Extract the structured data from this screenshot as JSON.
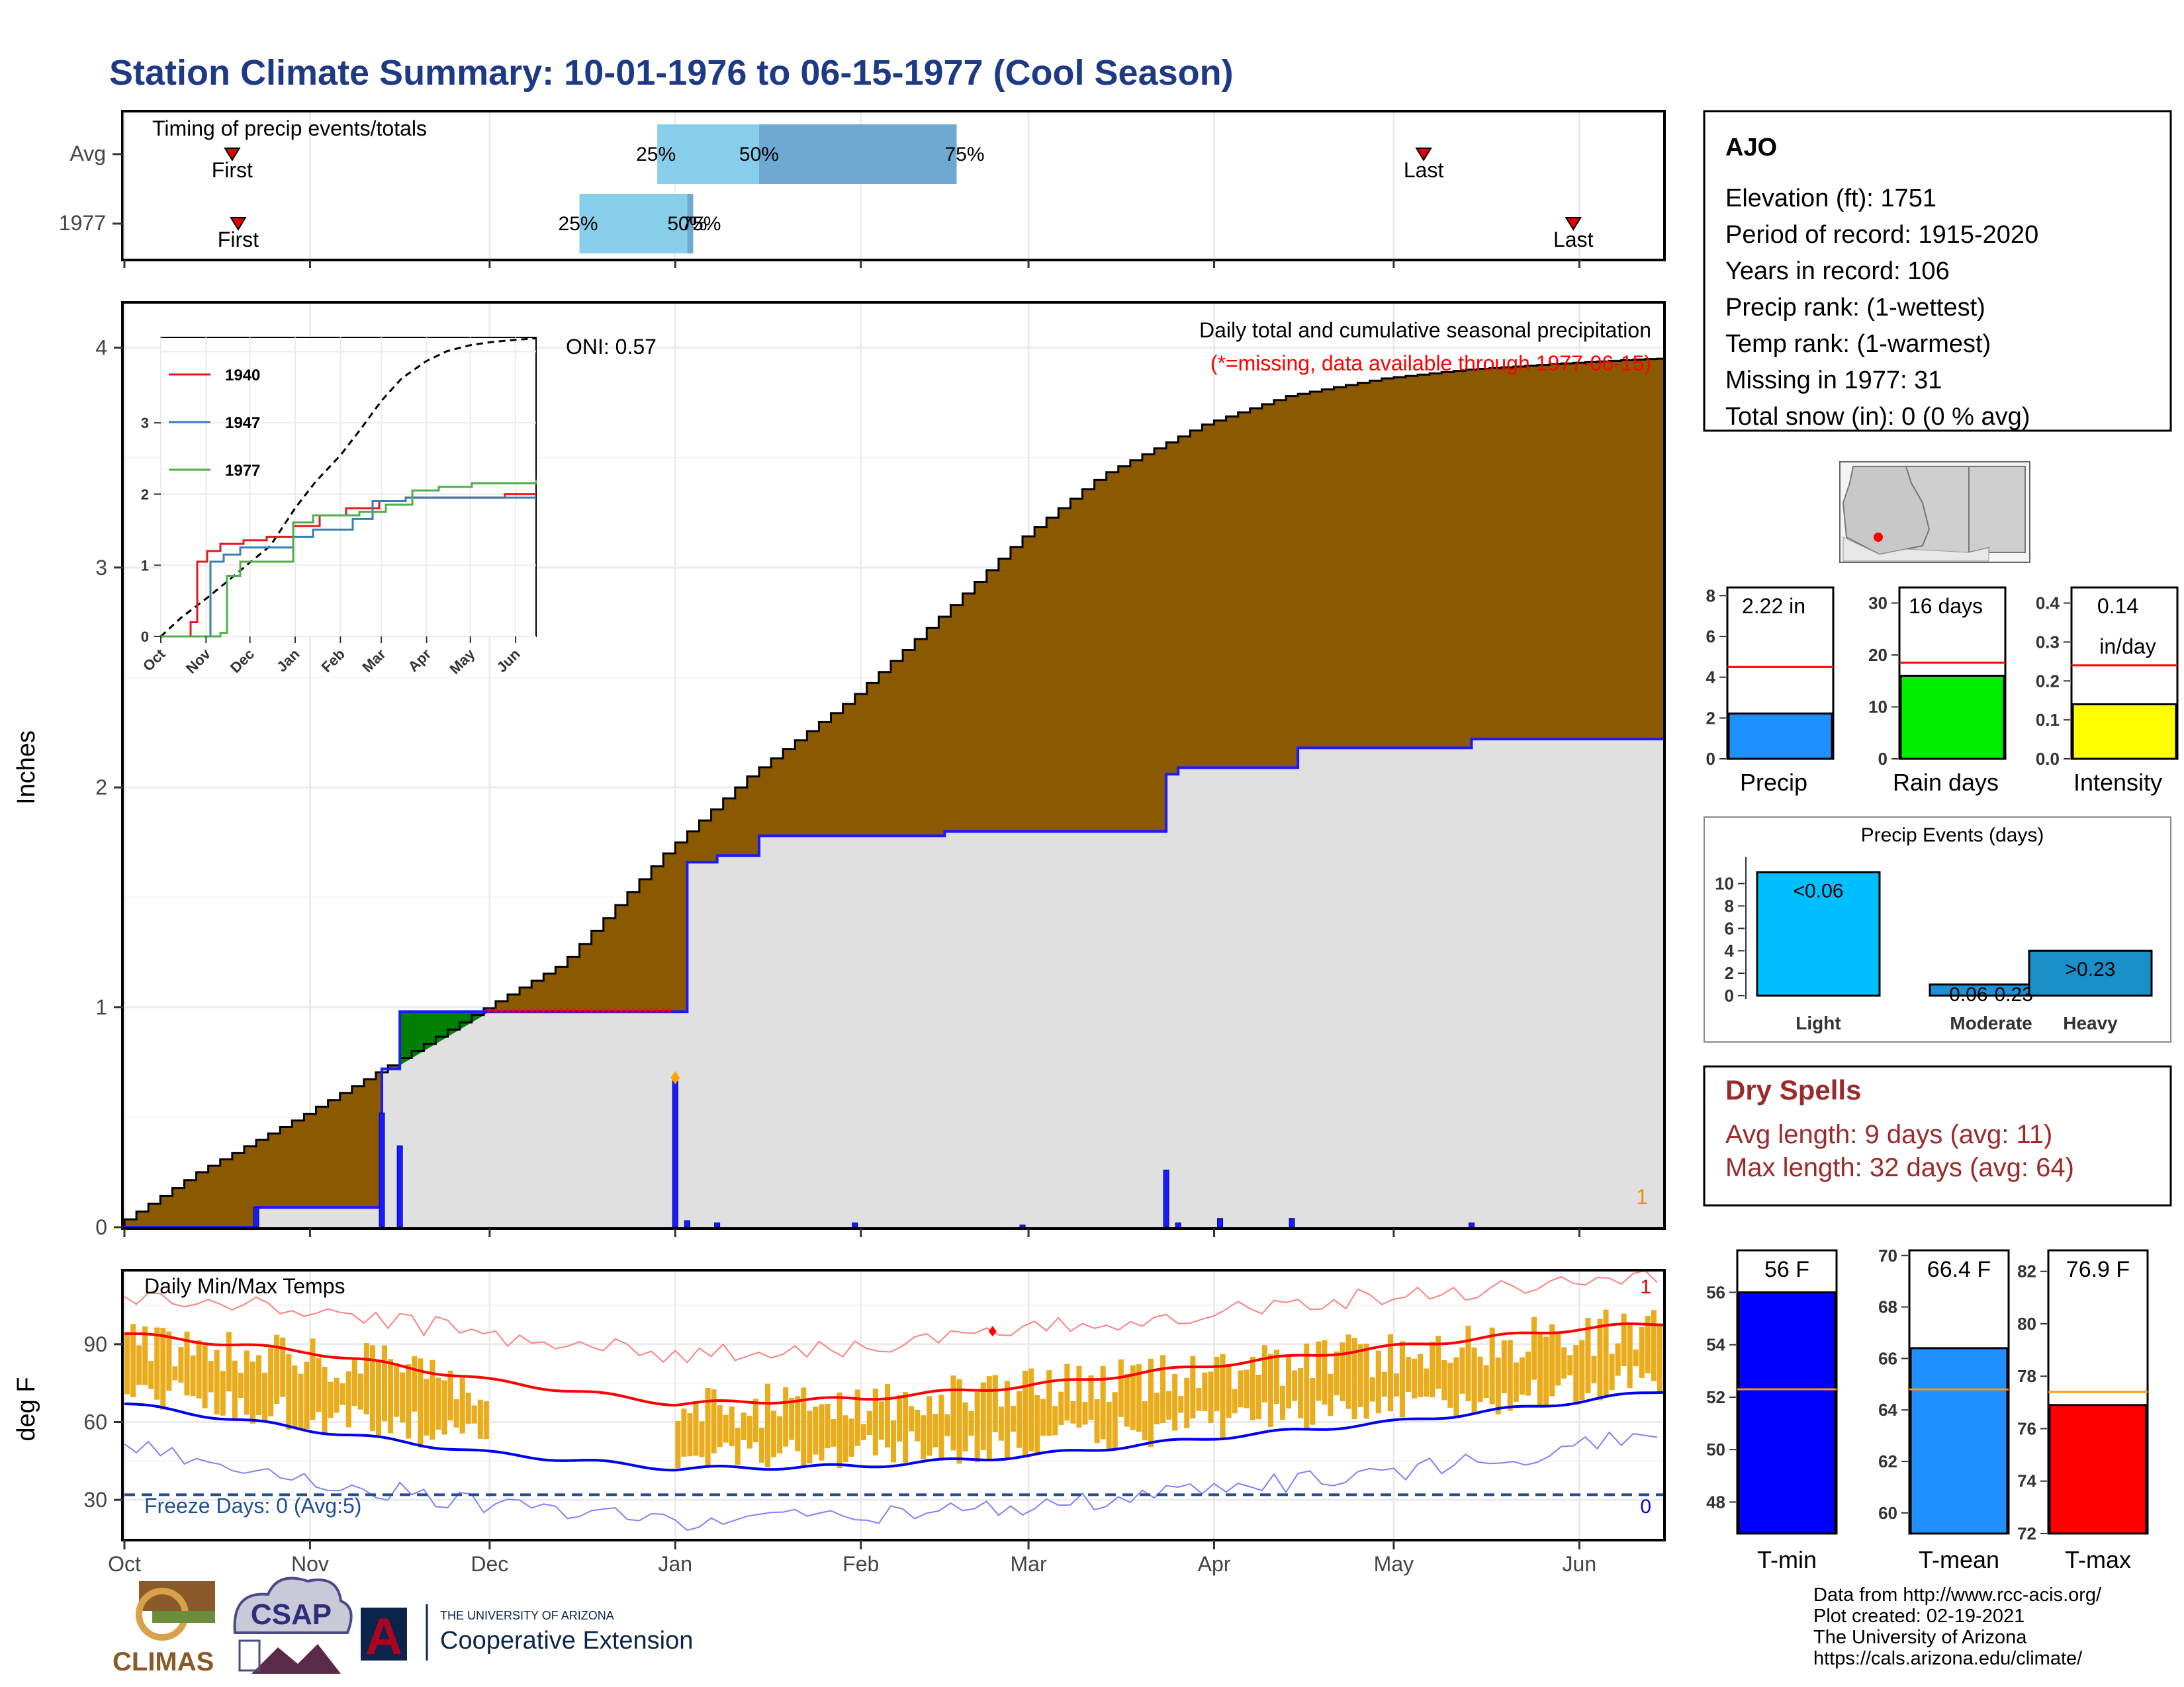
{
  "title": "Station Climate Summary: 10-01-1976 to 06-15-1977 (Cool Season)",
  "colors": {
    "title": "#1f3a85",
    "brown": "#8b5a00",
    "grey_fill": "#e0e0e0",
    "blue_line": "#1a1aff",
    "red_line": "#ff0000",
    "gold": "#e9ac1c",
    "dark_red": "#9c2a2a",
    "light_blue": "#87ceeb",
    "mid_blue": "#6fa8d0"
  },
  "timing": {
    "title": "Timing of precip events/totals",
    "rows": [
      {
        "label": "Avg",
        "first_label": "First",
        "last_label": "Last",
        "first_date": "1976-10-19",
        "last_date": "1977-05-06",
        "p25": "1976-12-29",
        "p50": "1977-01-15",
        "p75": "1977-02-17",
        "p25_label": "25%",
        "p50_label": "50%",
        "p75_label": "75%"
      },
      {
        "label": "1977",
        "first_label": "First",
        "last_label": "Last",
        "first_date": "1976-10-20",
        "last_date": "1977-05-31",
        "p25": "1976-12-16",
        "p50": "1977-01-03",
        "p75": "1977-01-04",
        "p25_label": "25%",
        "p50_label": "50%",
        "p75_label": "75%"
      }
    ]
  },
  "precip": {
    "ylabel": "Inches",
    "oni": "ONI: 0.57",
    "legend_title": "Daily total and cumulative seasonal precipitation",
    "missing_note": "(*=missing, data available through 1977-06-15)",
    "count_label": "1",
    "ylim": [
      0,
      4.2
    ],
    "yticks": [
      "0",
      "1",
      "2",
      "3",
      "4"
    ],
    "xticks": [
      "Oct",
      "Nov",
      "Dec",
      "Jan",
      "Feb",
      "Mar",
      "Apr",
      "May",
      "Jun"
    ]
  },
  "inset": {
    "yticks": [
      "0",
      "1",
      "2",
      "3"
    ],
    "xticks": [
      "Oct",
      "Nov",
      "Dec",
      "Jan",
      "Feb",
      "Mar",
      "Apr",
      "May",
      "Jun"
    ],
    "legend": [
      {
        "name": "1940",
        "color": "#e41a1c"
      },
      {
        "name": "1947",
        "color": "#377eb8"
      },
      {
        "name": "1977",
        "color": "#4daf4a"
      }
    ]
  },
  "temps": {
    "title": "Daily Min/Max Temps",
    "ylabel": "deg F",
    "freeze_label": "Freeze Days: 0 (Avg:5)",
    "top_count": "1",
    "bottom_count": "0",
    "yticks": [
      "30",
      "60",
      "90"
    ],
    "ylim": [
      15,
      118
    ],
    "xticks": [
      "Oct",
      "Nov",
      "Dec",
      "Jan",
      "Feb",
      "Mar",
      "Apr",
      "May",
      "Jun"
    ]
  },
  "station": {
    "name": "AJO",
    "lines": [
      "Elevation (ft): 1751",
      "Period of record: 1915-2020",
      "Years in record: 106",
      "Precip rank:  (1-wettest)",
      "Temp rank:  (1-warmest)",
      "Missing in 1977: 31",
      "Total snow (in): 0 (0 % avg)"
    ]
  },
  "mini_bars": [
    {
      "label": "Precip",
      "value_text": "2.22 in",
      "value": 2.22,
      "avg": 4.5,
      "ymax": 8.4,
      "ticks": [
        "0",
        "2",
        "4",
        "6",
        "8"
      ],
      "tickvals": [
        0,
        2,
        4,
        6,
        8
      ],
      "color": "#1e90ff"
    },
    {
      "label": "Rain days",
      "value_text": "16 days",
      "value": 16,
      "avg": 18.5,
      "ymax": 33,
      "ticks": [
        "0",
        "10",
        "20",
        "30"
      ],
      "tickvals": [
        0,
        10,
        20,
        30
      ],
      "color": "#00ee00"
    },
    {
      "label": "Intensity",
      "value_text": "0.14",
      "value_text2": "in/day",
      "value": 0.14,
      "avg": 0.24,
      "ymax": 0.44,
      "ticks": [
        "0.0",
        "0.1",
        "0.2",
        "0.3",
        "0.4"
      ],
      "tickvals": [
        0,
        0.1,
        0.2,
        0.3,
        0.4
      ],
      "color": "#ffff00"
    }
  ],
  "events": {
    "title": "Precip Events (days)",
    "ticks": [
      "0",
      "2",
      "4",
      "6",
      "8",
      "10"
    ],
    "categories": [
      {
        "name": "Light",
        "value": 11,
        "label": "<0.06",
        "color": "#00bfff"
      },
      {
        "name": "Moderate",
        "value": 1,
        "label": "0.06-0.23",
        "color": "#1f8fd6"
      },
      {
        "name": "Heavy",
        "value": 4,
        "label": ">0.23",
        "color": "#1a8fc8"
      }
    ]
  },
  "dry_spells": {
    "title": "Dry Spells",
    "avg": "Avg length: 9 days (avg: 11)",
    "max": "Max length: 32 days (avg: 64)"
  },
  "temp_bars": [
    {
      "label": "T-min",
      "value_text": "56 F",
      "value": 56,
      "avg": 52.3,
      "ymin": 46.8,
      "ymax": 57.6,
      "ticks": [
        "48",
        "50",
        "52",
        "54",
        "56"
      ],
      "tickvals": [
        48,
        50,
        52,
        54,
        56
      ],
      "color": "#0000ff"
    },
    {
      "label": "T-mean",
      "value_text": "66.4 F",
      "value": 66.4,
      "avg": 64.8,
      "ymin": 59.2,
      "ymax": 70.2,
      "ticks": [
        "60",
        "62",
        "64",
        "66",
        "68",
        "70"
      ],
      "tickvals": [
        60,
        62,
        64,
        66,
        68,
        70
      ],
      "color": "#1e90ff"
    },
    {
      "label": "T-max",
      "value_text": "76.9 F",
      "value": 76.9,
      "avg": 77.4,
      "ymin": 72,
      "ymax": 82.8,
      "ticks": [
        "72",
        "74",
        "76",
        "78",
        "80",
        "82"
      ],
      "tickvals": [
        72,
        74,
        76,
        78,
        80,
        82
      ],
      "color": "#ff0000"
    }
  ],
  "footer": {
    "lines": [
      "Data from http://www.rcc-acis.org/",
      "Plot created: 02-19-2021",
      "The University of Arizona",
      "https://cals.arizona.edu/climate/"
    ],
    "logo_climas": "CLIMAS",
    "logo_csap": "CSAP",
    "logo_ua": "A",
    "ua_small": "THE UNIVERSITY OF ARIZONA",
    "ua_big": "Cooperative Extension"
  },
  "chart_data": [
    {
      "type": "line",
      "title": "Daily total and cumulative seasonal precipitation",
      "ylabel": "Inches",
      "ylim": [
        0,
        4.2
      ],
      "series": [
        {
          "name": "cumulative average",
          "x": [
            "1976-10-01",
            "1976-10-15",
            "1976-11-01",
            "1976-11-15",
            "1976-12-01",
            "1976-12-15",
            "1977-01-01",
            "1977-01-15",
            "1977-02-01",
            "1977-02-15",
            "1977-03-01",
            "1977-03-15",
            "1977-04-01",
            "1977-04-15",
            "1977-05-01",
            "1977-05-15",
            "1977-06-01",
            "1977-06-15"
          ],
          "values": [
            0.0,
            0.25,
            0.5,
            0.72,
            0.98,
            1.2,
            1.7,
            2.05,
            2.4,
            2.75,
            3.12,
            3.42,
            3.65,
            3.78,
            3.86,
            3.9,
            3.93,
            3.95
          ]
        },
        {
          "name": "1977",
          "x": [
            "1976-10-01",
            "1976-10-23",
            "1976-11-13",
            "1976-11-16",
            "1976-12-01",
            "1977-01-01",
            "1977-01-03",
            "1977-01-08",
            "1977-01-15",
            "1977-02-15",
            "1977-03-24",
            "1977-03-26",
            "1977-04-15",
            "1977-05-14",
            "1977-06-15"
          ],
          "values": [
            0.0,
            0.09,
            0.72,
            0.98,
            0.98,
            0.98,
            1.66,
            1.69,
            1.78,
            1.8,
            2.06,
            2.09,
            2.18,
            2.22,
            2.22
          ]
        }
      ],
      "daily_bars": {
        "x": [
          "1976-10-23",
          "1976-11-13",
          "1976-11-16",
          "1977-01-01",
          "1977-01-03",
          "1977-01-08",
          "1977-01-31",
          "1977-02-28",
          "1977-03-24",
          "1977-03-26",
          "1977-04-02",
          "1977-04-14",
          "1977-05-14"
        ],
        "values": [
          0.09,
          0.52,
          0.37,
          0.68,
          0.03,
          0.02,
          0.02,
          0.01,
          0.26,
          0.02,
          0.04,
          0.04,
          0.02
        ]
      },
      "missing": [
        "1976-12-01",
        "1976-12-31"
      ]
    },
    {
      "type": "line",
      "title": "Daily Min/Max Temps",
      "ylabel": "deg F",
      "series": [
        {
          "name": "avg max",
          "x": [
            "Oct 1",
            "Nov 1",
            "Dec 1",
            "Jan 1",
            "Feb 1",
            "Mar 1",
            "Apr 1",
            "May 1",
            "Jun 1",
            "Jun 15"
          ],
          "values": [
            94,
            87,
            76,
            67,
            69,
            74,
            82,
            89,
            96,
            98
          ]
        },
        {
          "name": "avg min",
          "x": [
            "Oct 1",
            "Nov 1",
            "Dec 1",
            "Jan 1",
            "Feb 1",
            "Mar 1",
            "Apr 1",
            "May 1",
            "Jun 1",
            "Jun 15"
          ],
          "values": [
            67,
            57,
            48,
            42,
            43,
            47,
            54,
            60,
            68,
            72
          ]
        },
        {
          "name": "record max",
          "x": [
            "Oct 1",
            "Nov 1",
            "Dec 1",
            "Jan 1",
            "Feb 1",
            "Mar 1",
            "Apr 1",
            "May 1",
            "Jun 1",
            "Jun 15"
          ],
          "values": [
            108,
            103,
            94,
            86,
            89,
            95,
            103,
            109,
            114,
            116
          ]
        },
        {
          "name": "record min",
          "x": [
            "Oct 1",
            "Nov 1",
            "Dec 1",
            "Jan 1",
            "Feb 1",
            "Mar 1",
            "Apr 1",
            "May 1",
            "Jun 1",
            "Jun 15"
          ],
          "values": [
            51,
            38,
            28,
            22,
            24,
            27,
            34,
            41,
            50,
            56
          ]
        }
      ]
    },
    {
      "type": "bar",
      "categories": [
        "Precip"
      ],
      "values": [
        2.22
      ],
      "ylim": [
        0,
        8.4
      ]
    },
    {
      "type": "bar",
      "categories": [
        "Rain days"
      ],
      "values": [
        16
      ],
      "ylim": [
        0,
        33
      ]
    },
    {
      "type": "bar",
      "categories": [
        "Intensity"
      ],
      "values": [
        0.14
      ],
      "ylim": [
        0,
        0.44
      ]
    },
    {
      "type": "bar",
      "title": "Precip Events (days)",
      "categories": [
        "Light",
        "Moderate",
        "Heavy"
      ],
      "values": [
        11,
        1,
        4
      ]
    },
    {
      "type": "bar",
      "categories": [
        "T-min"
      ],
      "values": [
        56
      ]
    },
    {
      "type": "bar",
      "categories": [
        "T-mean"
      ],
      "values": [
        66.4
      ]
    },
    {
      "type": "bar",
      "categories": [
        "T-max"
      ],
      "values": [
        76.9
      ]
    }
  ]
}
